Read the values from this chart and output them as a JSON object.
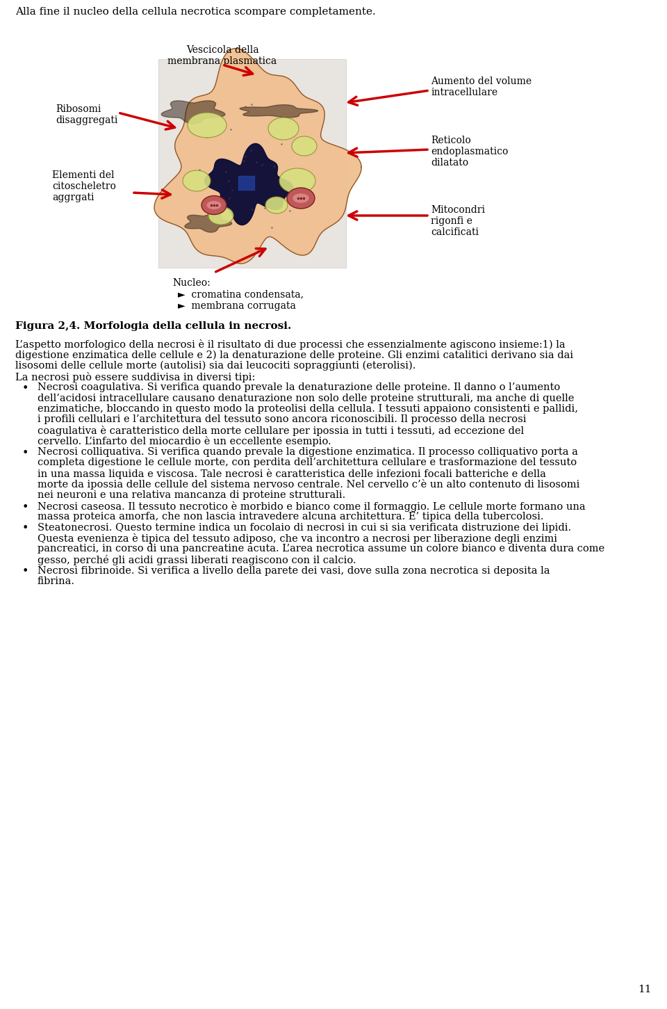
{
  "page_width": 9.6,
  "page_height": 14.51,
  "bg_color": "#ffffff",
  "top_text": "Alla fine il nucleo della cellula necrotica scompare completamente.",
  "labels": {
    "vescicola": "Vescicola della\nmembrana plasmatica",
    "aumento": "Aumento del volume\nintracellulare",
    "ribosomi": "Ribosomi\ndisaggregati",
    "reticolo": "Reticolo\nendoplasmatico\ndilatato",
    "elementi": "Elementi del\ncitoscheletro\naggrgati",
    "mitocondri": "Mitocondri\nrigonfi e\ncalcificati",
    "nucleo_title": "Nucleo:",
    "nucleo_item1": "►  cromatina condensata,",
    "nucleo_item2": "►  membrana corrugata"
  },
  "figure_caption_bold": "Figura 2,4. Morfologia della cellula in necrosi.",
  "para1": "L’aspetto morfologico della necrosi è il risultato di due processi che essenzialmente agiscono insieme:1) la digestione enzimatica delle cellule e 2) la denaturazione delle proteine. Gli enzimi catalitici derivano sia dai lisosomi delle cellule morte (autolisi) sia dai leucociti sopraggiunti (eterolisi).",
  "para2": "La necrosi può essere suddivisa in diversi tipi:",
  "bullets": [
    "Necrosi coagulativa. Si verifica quando prevale la denaturazione delle proteine. Il danno o l’aumento dell’acidosi intracellulare causano denaturazione non solo delle proteine strutturali, ma anche di quelle enzimatiche, bloccando in questo modo la proteolisi della cellula. I tessuti appaiono consistenti e pallidi, i profili cellulari e l’architettura del tessuto sono ancora riconoscibili. Il processo della necrosi coagulativa è caratteristico della morte cellulare per ipossia in tutti i tessuti, ad eccezione del cervello. L’infarto del miocardio è un eccellente esempio.",
    "Necrosi colliquativa. Si verifica quando prevale la digestione enzimatica. Il processo colliquativo porta a completa digestione le cellule morte, con perdita dell’architettura cellulare e trasformazione del tessuto in una massa liquida e viscosa. Tale necrosi è caratteristica delle infezioni focali batteriche e della morte da ipossia delle cellule del sistema nervoso centrale. Nel cervello c’è un alto contenuto di lisosomi nei neuroni e una relativa mancanza di proteine strutturali.",
    "Necrosi caseosa. Il tessuto necrotico è morbido e bianco come il formaggio. Le cellule morte formano una massa proteica amorfa, che non lascia intravedere alcuna architettura. E’ tipica della tubercolosi.",
    "Steatonecrosi. Questo termine indica un focolaio di necrosi in cui si sia verificata distruzione dei lipidi. Questa evenienza è tipica del tessuto adiposo, che va incontro a necrosi per liberazione degli enzimi pancreatici, in corso di una pancreatine acuta. L’area necrotica assume un colore bianco e diventa dura come gesso, perché gli acidi grassi liberati reagiscono con il calcio.",
    "Necrosi fibrinoide. Si verifica a livello della parete dei vasi, dove sulla zona necrotica si deposita la fibrina."
  ],
  "page_number": "11",
  "font_size_body": 10.5,
  "font_size_label": 10,
  "font_size_caption": 11,
  "font_size_top": 11,
  "text_color": "#000000",
  "arrow_color": "#cc0000",
  "cell_color": "#f0c090",
  "nucleus_color": "#0a0a30",
  "vacuole_color": "#d8e080",
  "mito_outer": "#c06060",
  "mito_inner": "#e09090"
}
